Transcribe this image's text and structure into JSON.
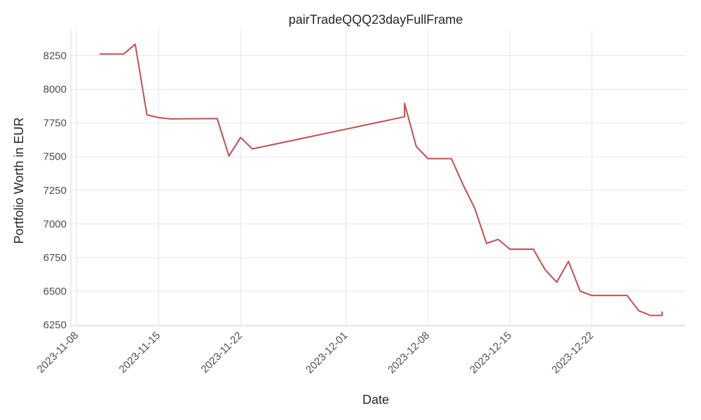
{
  "chart_data": {
    "type": "line",
    "title": "pairTradeQQQ23dayFullFrame",
    "xlabel": "Date",
    "ylabel": "Portfolio Worth in EUR",
    "x_ticks": [
      "2023-11-08",
      "2023-11-15",
      "2023-11-22",
      "2023-12-01",
      "2023-12-08",
      "2023-12-15",
      "2023-12-22"
    ],
    "y_ticks": [
      6250,
      6500,
      6750,
      7000,
      7250,
      7500,
      7750,
      8000,
      8250
    ],
    "xlim": [
      "2023-11-07T12:00",
      "2023-12-30"
    ],
    "ylim": [
      6240,
      8440
    ],
    "grid": true,
    "line_color": "#c44e52",
    "series": [
      {
        "points": [
          [
            "2023-11-10",
            8262
          ],
          [
            "2023-11-12",
            8262
          ],
          [
            "2023-11-13",
            8335
          ],
          [
            "2023-11-14",
            7810
          ],
          [
            "2023-11-15",
            7790
          ],
          [
            "2023-11-16",
            7780
          ],
          [
            "2023-11-20",
            7783
          ],
          [
            "2023-11-21",
            7505
          ],
          [
            "2023-11-22",
            7642
          ],
          [
            "2023-11-23",
            7557
          ],
          [
            "2023-12-06",
            7796
          ],
          [
            "2023-12-06T00:01",
            7895
          ],
          [
            "2023-12-07",
            7575
          ],
          [
            "2023-12-08",
            7485
          ],
          [
            "2023-12-10",
            7485
          ],
          [
            "2023-12-11",
            7290
          ],
          [
            "2023-12-12",
            7115
          ],
          [
            "2023-12-13",
            6855
          ],
          [
            "2023-12-14",
            6885
          ],
          [
            "2023-12-15",
            6812
          ],
          [
            "2023-12-17",
            6812
          ],
          [
            "2023-12-18",
            6660
          ],
          [
            "2023-12-19",
            6567
          ],
          [
            "2023-12-20",
            6722
          ],
          [
            "2023-12-21",
            6500
          ],
          [
            "2023-12-22",
            6468
          ],
          [
            "2023-12-25",
            6468
          ],
          [
            "2023-12-26",
            6355
          ],
          [
            "2023-12-27",
            6320
          ],
          [
            "2023-12-28",
            6320
          ],
          [
            "2023-12-28T00:01",
            6345
          ]
        ]
      }
    ]
  }
}
